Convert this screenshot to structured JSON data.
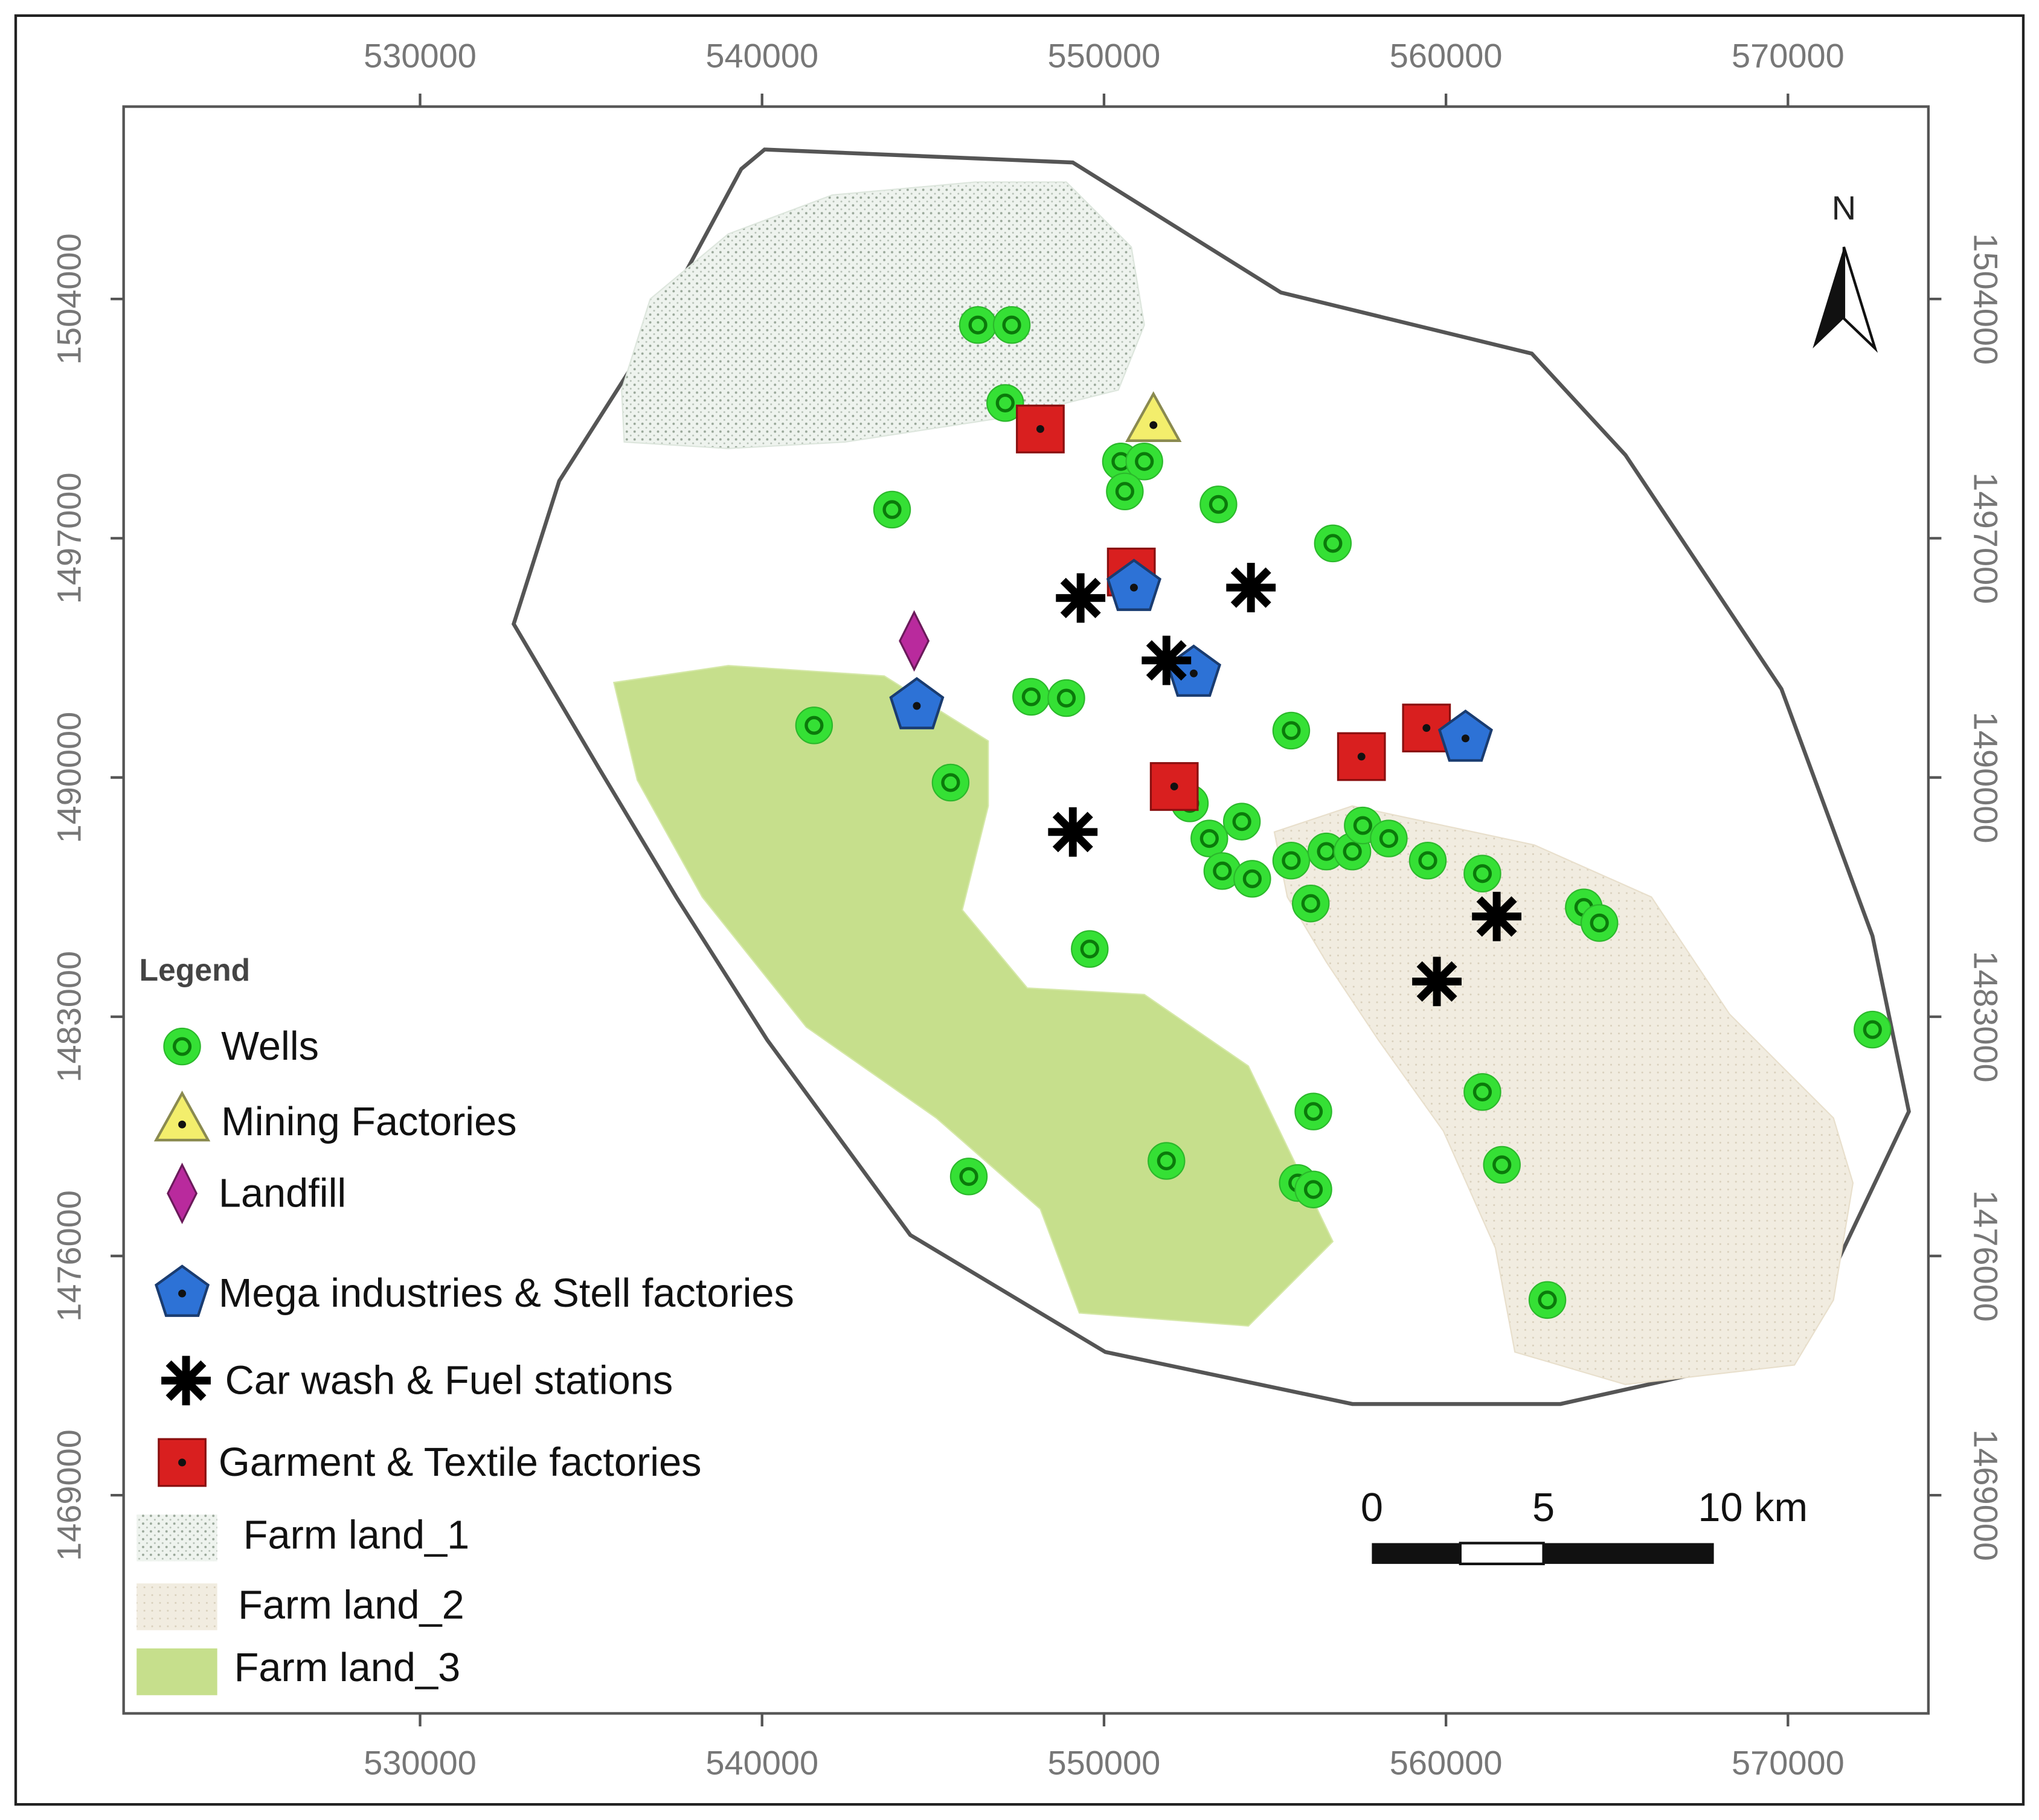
{
  "x_axis": {
    "ticks": [
      530000,
      540000,
      550000,
      560000,
      570000
    ]
  },
  "y_axis": {
    "ticks": [
      1504000,
      1497000,
      1490000,
      1483000,
      1476000,
      1469000
    ]
  },
  "north": "N",
  "legend": {
    "title": "Legend",
    "items": [
      "Wells",
      "Mining Factories",
      "Landfill",
      "Mega industries & Stell factories",
      "Car wash & Fuel stations",
      "Garment & Textile factories",
      "Farm land_1",
      "Farm land_2",
      "Farm land_3"
    ]
  },
  "scale_bar": {
    "labels": [
      "0",
      "5",
      "10 km"
    ]
  }
}
